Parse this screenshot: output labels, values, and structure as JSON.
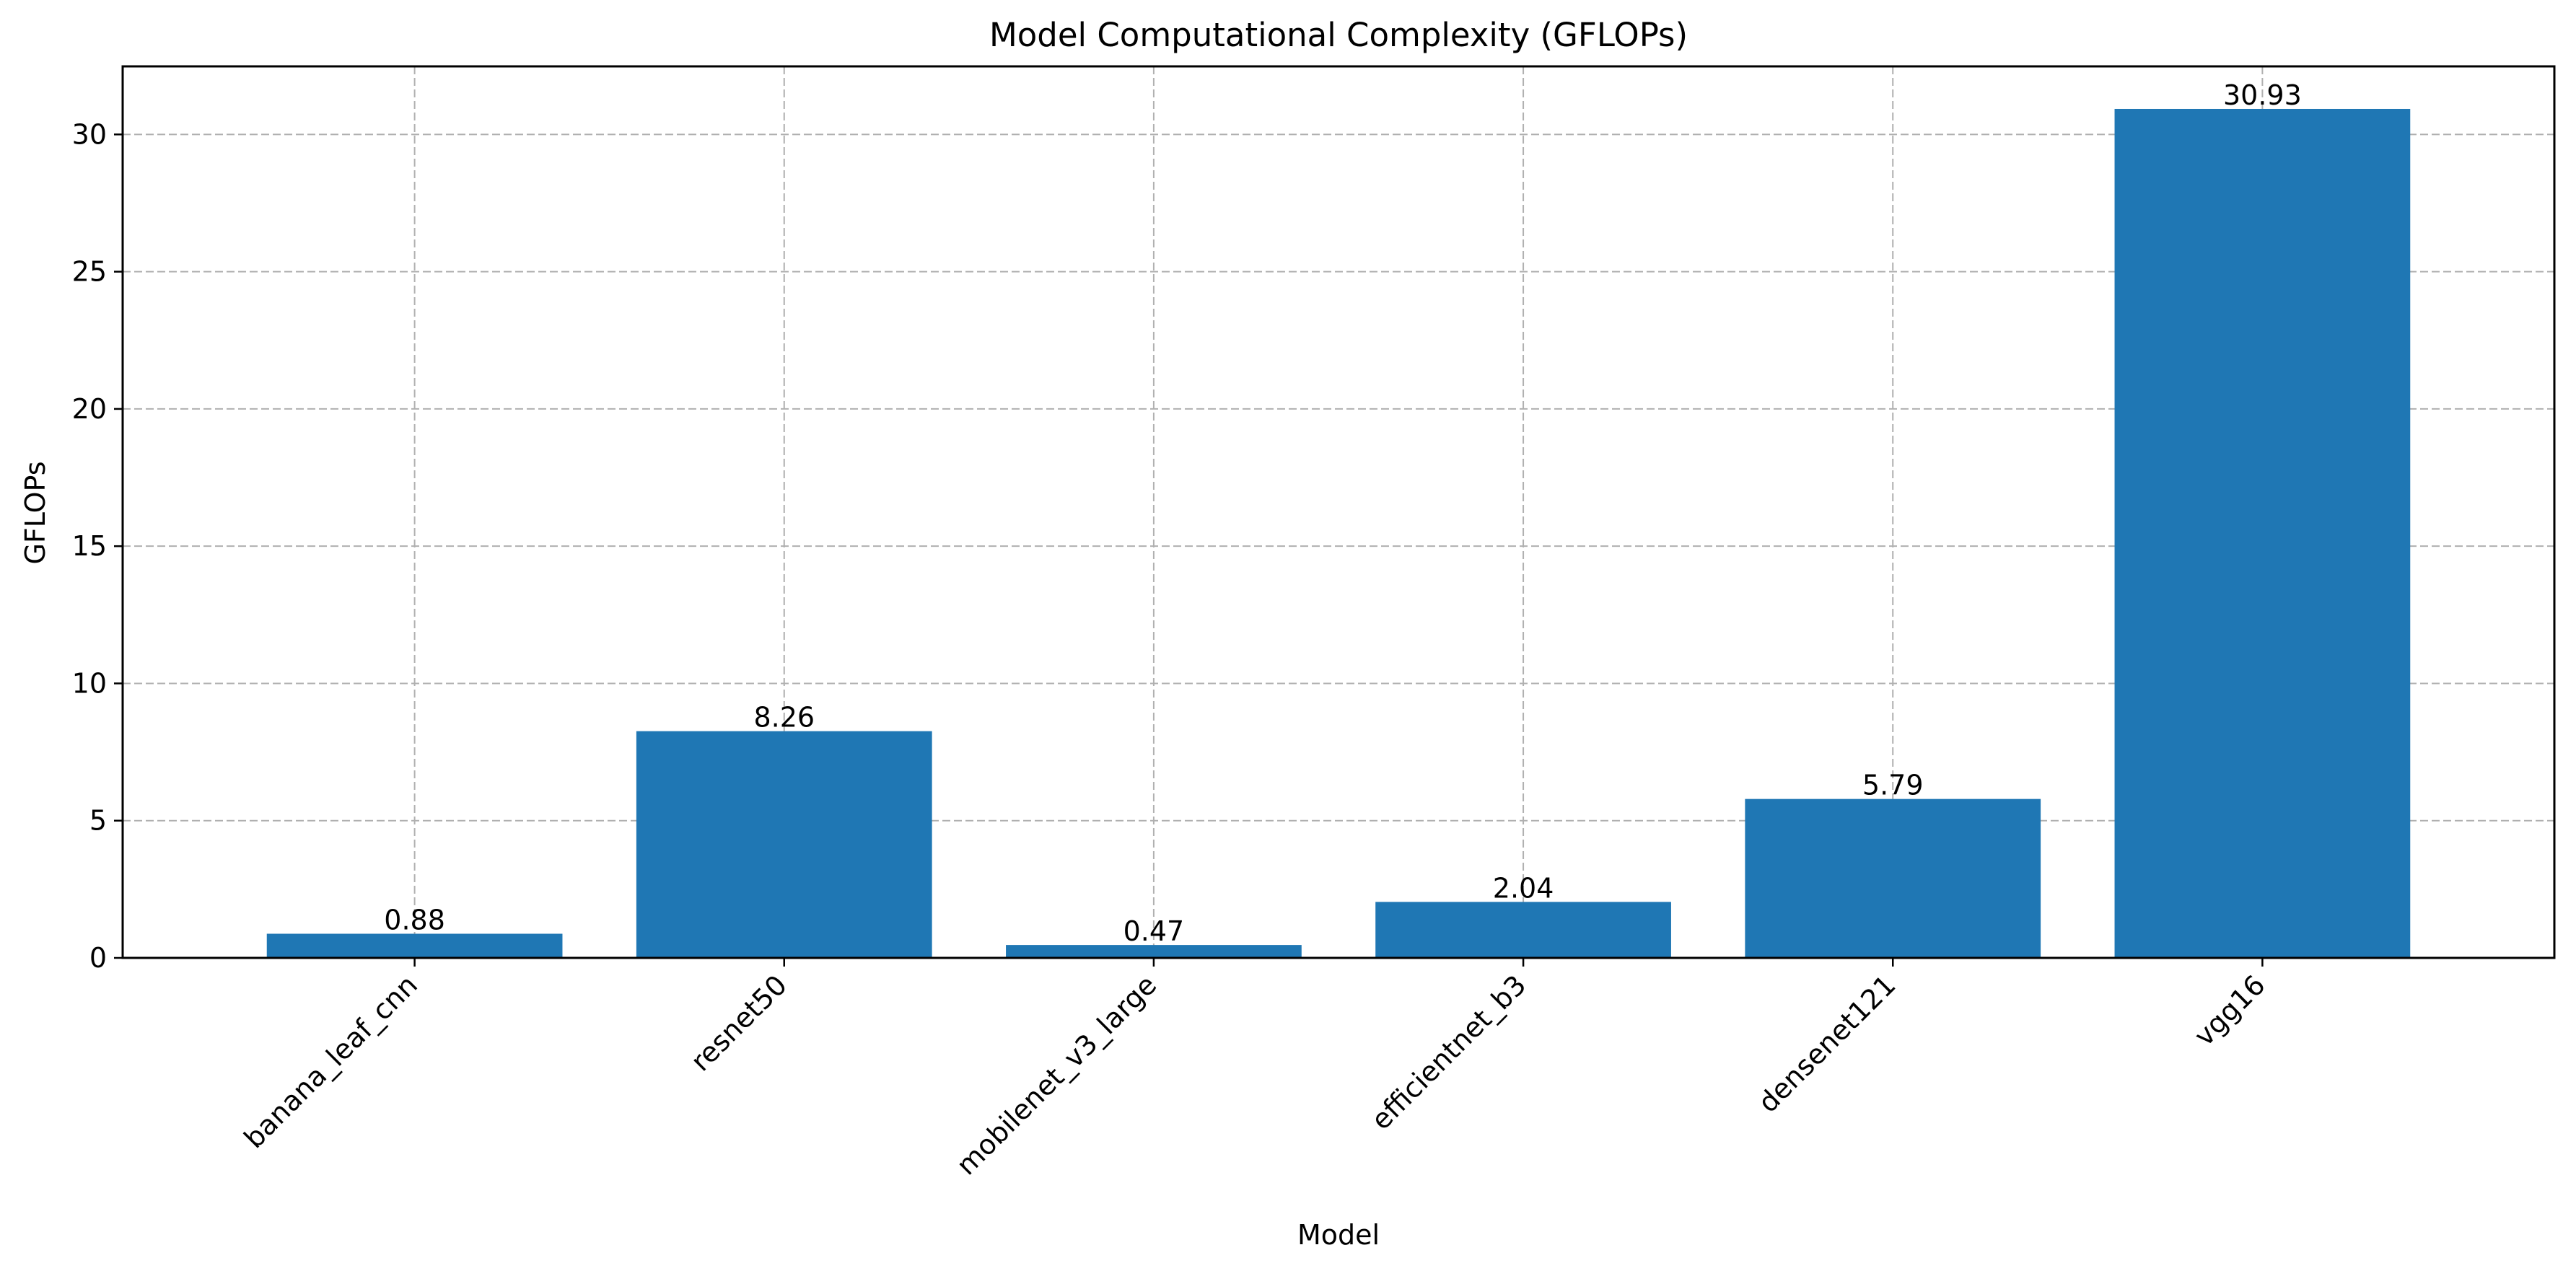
{
  "chart_data": {
    "type": "bar",
    "title": "Model Computational Complexity (GFLOPs)",
    "xlabel": "Model",
    "ylabel": "GFLOPs",
    "categories": [
      "banana_leaf_cnn",
      "resnet50",
      "mobilenet_v3_large",
      "efficientnet_b3",
      "densenet121",
      "vgg16"
    ],
    "values": [
      0.88,
      8.26,
      0.47,
      2.04,
      5.79,
      30.93
    ],
    "data_labels": [
      "0.88",
      "8.26",
      "0.47",
      "2.04",
      "5.79",
      "30.93"
    ],
    "ylim": [
      0,
      32.48
    ],
    "yticks": [
      0,
      5,
      10,
      15,
      20,
      25,
      30
    ],
    "grid": true,
    "legend": "none"
  },
  "colors": {
    "bar": "#1f77b4",
    "grid": "#b0b0b0",
    "axis": "#000000"
  }
}
